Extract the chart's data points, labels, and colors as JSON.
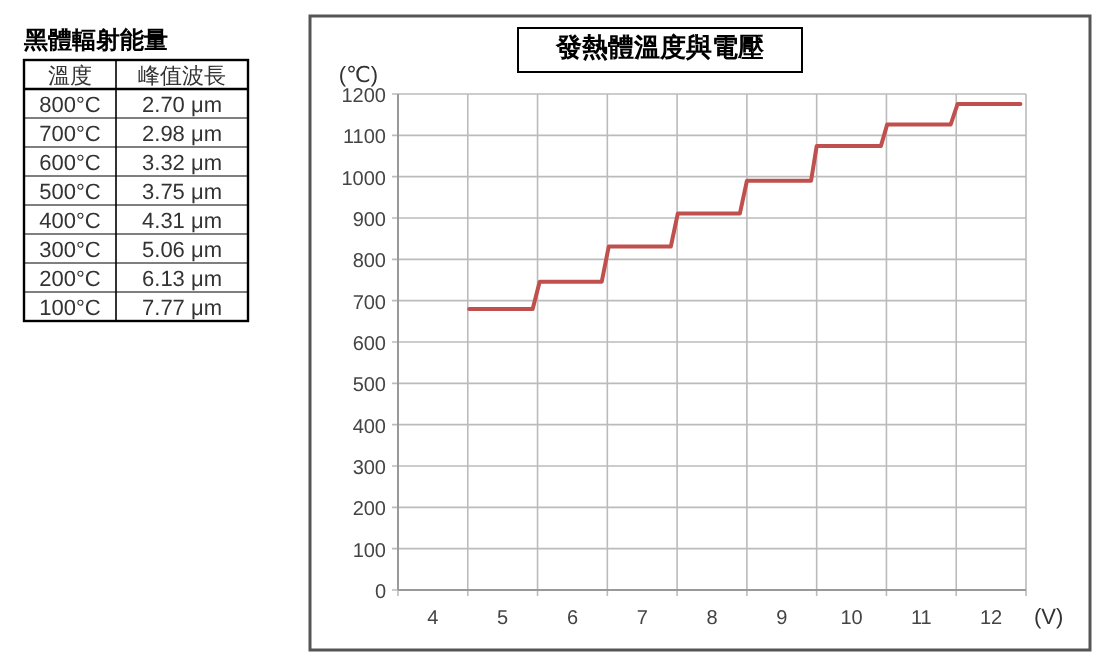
{
  "chart_data": [
    {
      "type": "heatmap",
      "title": "黑體輻射能量",
      "ylabel": "溫度",
      "categories": [
        "峰值波長"
      ],
      "y_categories": [
        "800°C",
        "700°C",
        "600°C",
        "500°C",
        "400°C",
        "300°C",
        "200°C",
        "100°C"
      ],
      "cells": [
        [
          2.7
        ],
        [
          2.98
        ],
        [
          3.32
        ],
        [
          3.75
        ],
        [
          4.31
        ],
        [
          5.06
        ],
        [
          6.13
        ],
        [
          7.77
        ]
      ],
      "cell_labels": [
        [
          "2.70 μm"
        ],
        [
          "2.98 μm"
        ],
        [
          "3.32 μm"
        ],
        [
          "3.75 μm"
        ],
        [
          "4.31 μm"
        ],
        [
          "5.06 μm"
        ],
        [
          "6.13 μm"
        ],
        [
          "7.77 μm"
        ]
      ]
    },
    {
      "type": "line",
      "title": "發熱體溫度與電壓",
      "xlabel": "(V)",
      "ylabel": "(℃)",
      "xlim": [
        3.5,
        12.5
      ],
      "xticks": [
        4,
        5,
        6,
        7,
        8,
        9,
        10,
        11,
        12
      ],
      "ylim": [
        0,
        1200
      ],
      "yticks": [
        0,
        100,
        200,
        300,
        400,
        500,
        600,
        700,
        800,
        900,
        1000,
        1100,
        1200
      ],
      "grid": true,
      "marker": "none",
      "line_style": "solid",
      "series": [
        {
          "color": "#c0504d",
          "x": [
            4.52,
            5.43,
            5.53,
            6.42,
            6.52,
            7.41,
            7.51,
            8.4,
            8.5,
            9.42,
            9.5,
            10.42,
            10.51,
            11.42,
            11.52,
            12.42
          ],
          "values": [
            680,
            680,
            746,
            746,
            831,
            831,
            911,
            911,
            990,
            990,
            1074,
            1074,
            1126,
            1126,
            1176,
            1176
          ]
        }
      ]
    }
  ]
}
